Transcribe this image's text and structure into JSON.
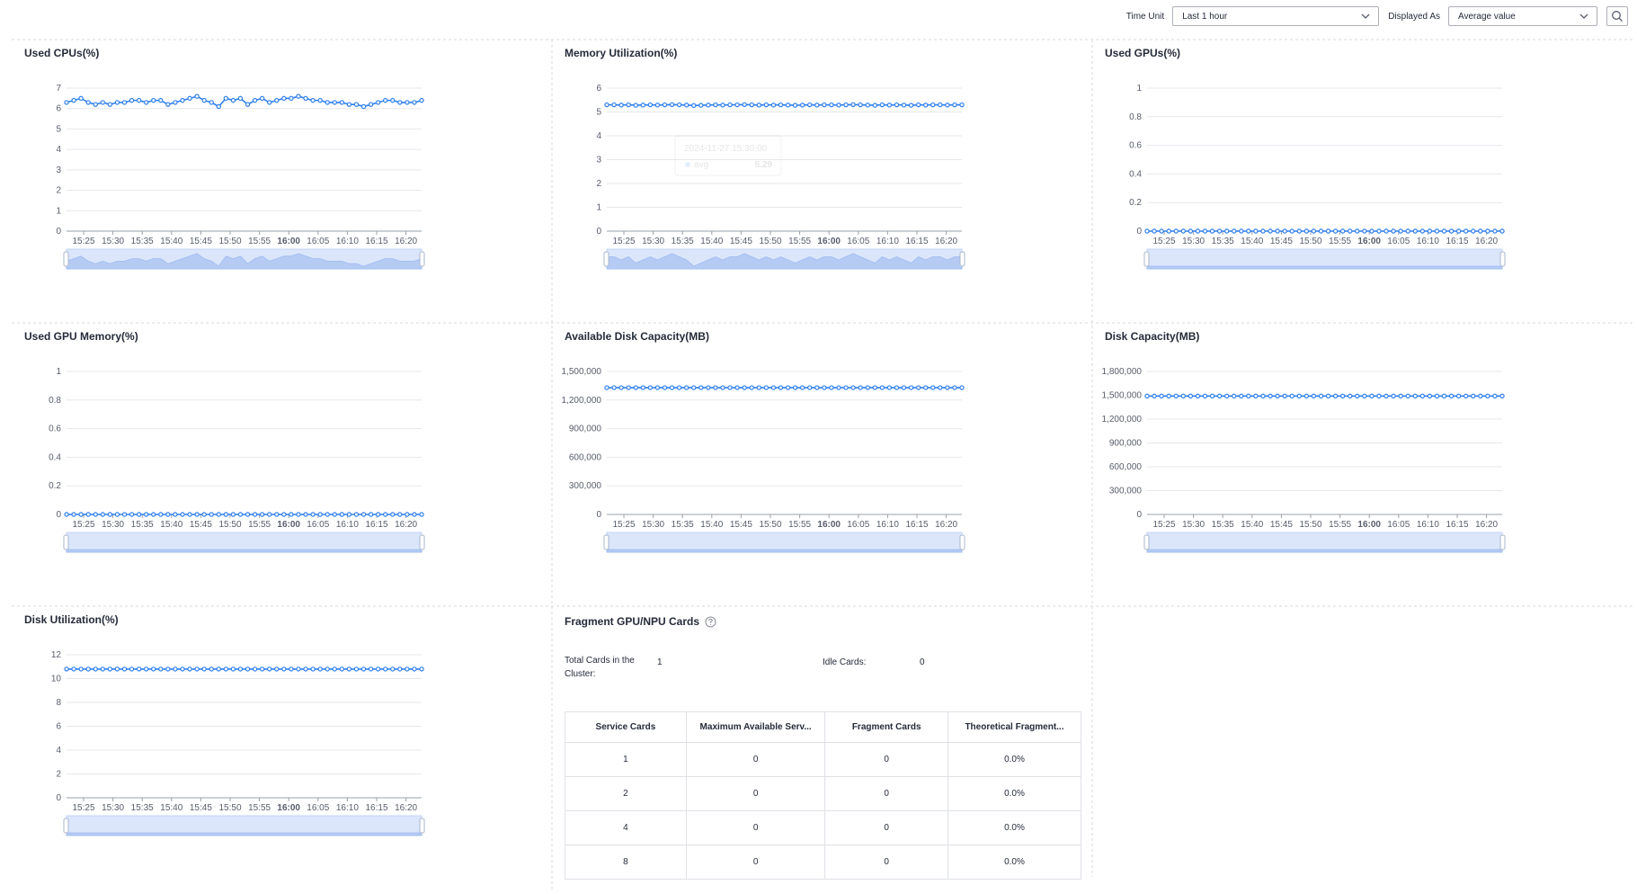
{
  "toolbar": {
    "time_unit_label": "Time Unit",
    "time_unit_value": "Last 1 hour",
    "display_label": "Displayed As",
    "display_value": "Average value",
    "search_icon": "search-icon"
  },
  "x_ticks": [
    "15:25",
    "15:30",
    "15:35",
    "15:40",
    "15:45",
    "15:50",
    "15:55",
    "16:00",
    "16:05",
    "16:10",
    "16:15",
    "16:20"
  ],
  "panels": [
    {
      "title": "Used CPUs(%)"
    },
    {
      "title": "Memory Utilization(%)"
    },
    {
      "title": "Used GPUs(%)"
    },
    {
      "title": "Used GPU Memory(%)"
    },
    {
      "title": "Available Disk Capacity(MB)"
    },
    {
      "title": "Disk Capacity(MB)"
    },
    {
      "title": "Disk Utilization(%)"
    }
  ],
  "chart_data": [
    {
      "type": "line",
      "title": "Used CPUs(%)",
      "ylim": [
        0,
        7
      ],
      "yticks": [
        "0",
        "1",
        "2",
        "3",
        "4",
        "5",
        "6",
        "7"
      ],
      "series": [
        {
          "values": [
            6.3,
            6.4,
            6.5,
            6.3,
            6.2,
            6.3,
            6.2,
            6.3,
            6.3,
            6.4,
            6.4,
            6.3,
            6.4,
            6.4,
            6.2,
            6.3,
            6.4,
            6.5,
            6.6,
            6.4,
            6.3,
            6.1,
            6.5,
            6.4,
            6.5,
            6.2,
            6.4,
            6.5,
            6.3,
            6.4,
            6.5,
            6.5,
            6.6,
            6.5,
            6.4,
            6.4,
            6.3,
            6.3,
            6.3,
            6.2,
            6.2,
            6.1,
            6.2,
            6.3,
            6.4,
            6.4,
            6.3,
            6.3,
            6.3,
            6.4
          ]
        }
      ]
    },
    {
      "type": "line",
      "title": "Memory Utilization(%)",
      "ylim": [
        0,
        6
      ],
      "yticks": [
        "0",
        "1",
        "2",
        "3",
        "4",
        "5",
        "6"
      ],
      "tooltip": {
        "time": "2024-11-27 15:30:00",
        "series": "avg",
        "value": "5.29"
      },
      "series": [
        {
          "values": [
            5.3,
            5.3,
            5.29,
            5.3,
            5.28,
            5.29,
            5.3,
            5.29,
            5.3,
            5.31,
            5.3,
            5.29,
            5.27,
            5.28,
            5.29,
            5.3,
            5.29,
            5.3,
            5.3,
            5.31,
            5.3,
            5.29,
            5.3,
            5.29,
            5.3,
            5.29,
            5.28,
            5.29,
            5.3,
            5.29,
            5.3,
            5.3,
            5.29,
            5.3,
            5.31,
            5.3,
            5.29,
            5.28,
            5.3,
            5.29,
            5.3,
            5.29,
            5.28,
            5.3,
            5.29,
            5.3,
            5.3,
            5.29,
            5.3,
            5.3
          ]
        }
      ]
    },
    {
      "type": "line",
      "title": "Used GPUs(%)",
      "ylim": [
        0,
        1
      ],
      "yticks": [
        "0",
        "0.2",
        "0.4",
        "0.6",
        "0.8",
        "1"
      ],
      "series": [
        {
          "values": [
            0,
            0,
            0,
            0,
            0,
            0,
            0,
            0,
            0,
            0,
            0,
            0,
            0,
            0,
            0,
            0,
            0,
            0,
            0,
            0,
            0,
            0,
            0,
            0,
            0,
            0,
            0,
            0,
            0,
            0,
            0,
            0,
            0,
            0,
            0,
            0,
            0,
            0,
            0,
            0,
            0,
            0,
            0,
            0,
            0,
            0,
            0,
            0,
            0,
            0
          ]
        }
      ]
    },
    {
      "type": "line",
      "title": "Used GPU Memory(%)",
      "ylim": [
        0,
        1
      ],
      "yticks": [
        "0",
        "0.2",
        "0.4",
        "0.6",
        "0.8",
        "1"
      ],
      "series": [
        {
          "values": [
            0,
            0,
            0,
            0,
            0,
            0,
            0,
            0,
            0,
            0,
            0,
            0,
            0,
            0,
            0,
            0,
            0,
            0,
            0,
            0,
            0,
            0,
            0,
            0,
            0,
            0,
            0,
            0,
            0,
            0,
            0,
            0,
            0,
            0,
            0,
            0,
            0,
            0,
            0,
            0,
            0,
            0,
            0,
            0,
            0,
            0,
            0,
            0,
            0,
            0
          ]
        }
      ]
    },
    {
      "type": "line",
      "title": "Available Disk Capacity(MB)",
      "ylim": [
        0,
        1500000
      ],
      "yticks": [
        "0",
        "300,000",
        "600,000",
        "900,000",
        "1,200,000",
        "1,500,000"
      ],
      "series": [
        {
          "values": [
            1330000,
            1330000,
            1330000,
            1330000,
            1330000,
            1330000,
            1330000,
            1330000,
            1330000,
            1330000,
            1330000,
            1330000,
            1330000,
            1330000,
            1330000,
            1330000,
            1330000,
            1330000,
            1330000,
            1330000,
            1330000,
            1330000,
            1330000,
            1330000,
            1330000,
            1330000,
            1330000,
            1330000,
            1330000,
            1330000,
            1330000,
            1330000,
            1330000,
            1330000,
            1330000,
            1330000,
            1330000,
            1330000,
            1330000,
            1330000,
            1330000,
            1330000,
            1330000,
            1330000,
            1330000,
            1330000,
            1330000,
            1330000,
            1330000,
            1330000
          ]
        }
      ]
    },
    {
      "type": "line",
      "title": "Disk Capacity(MB)",
      "ylim": [
        0,
        1800000
      ],
      "yticks": [
        "0",
        "300,000",
        "600,000",
        "900,000",
        "1,200,000",
        "1,500,000",
        "1,800,000"
      ],
      "series": [
        {
          "values": [
            1490000,
            1490000,
            1490000,
            1490000,
            1490000,
            1490000,
            1490000,
            1490000,
            1490000,
            1490000,
            1490000,
            1490000,
            1490000,
            1490000,
            1490000,
            1490000,
            1490000,
            1490000,
            1490000,
            1490000,
            1490000,
            1490000,
            1490000,
            1490000,
            1490000,
            1490000,
            1490000,
            1490000,
            1490000,
            1490000,
            1490000,
            1490000,
            1490000,
            1490000,
            1490000,
            1490000,
            1490000,
            1490000,
            1490000,
            1490000,
            1490000,
            1490000,
            1490000,
            1490000,
            1490000,
            1490000,
            1490000,
            1490000,
            1490000,
            1490000
          ]
        }
      ]
    },
    {
      "type": "line",
      "title": "Disk Utilization(%)",
      "ylim": [
        0,
        12
      ],
      "yticks": [
        "0",
        "2",
        "4",
        "6",
        "8",
        "10",
        "12"
      ],
      "series": [
        {
          "values": [
            10.8,
            10.8,
            10.8,
            10.8,
            10.8,
            10.8,
            10.8,
            10.8,
            10.8,
            10.8,
            10.8,
            10.8,
            10.8,
            10.8,
            10.8,
            10.8,
            10.8,
            10.8,
            10.8,
            10.8,
            10.8,
            10.8,
            10.8,
            10.8,
            10.8,
            10.8,
            10.8,
            10.8,
            10.8,
            10.8,
            10.8,
            10.8,
            10.8,
            10.8,
            10.8,
            10.8,
            10.8,
            10.8,
            10.8,
            10.8,
            10.8,
            10.8,
            10.8,
            10.8,
            10.8,
            10.8,
            10.8,
            10.8,
            10.8,
            10.8
          ]
        }
      ]
    }
  ],
  "fragment": {
    "title": "Fragment GPU/NPU Cards",
    "info_icon": "help-circle-icon",
    "total_label": "Total Cards in the Cluster:",
    "total_value": "1",
    "idle_label": "Idle Cards:",
    "idle_value": "0",
    "columns": [
      "Service Cards",
      "Maximum Available Serv...",
      "Fragment Cards",
      "Theoretical Fragment..."
    ],
    "rows": [
      [
        "1",
        "0",
        "0",
        "0.0%"
      ],
      [
        "2",
        "0",
        "0",
        "0.0%"
      ],
      [
        "4",
        "0",
        "0",
        "0.0%"
      ],
      [
        "8",
        "0",
        "0",
        "0.0%"
      ]
    ]
  },
  "colors": {
    "accent": "#2f80ed",
    "grid": "#e5e7eb",
    "zoom_fill": "#dbe6fb"
  }
}
